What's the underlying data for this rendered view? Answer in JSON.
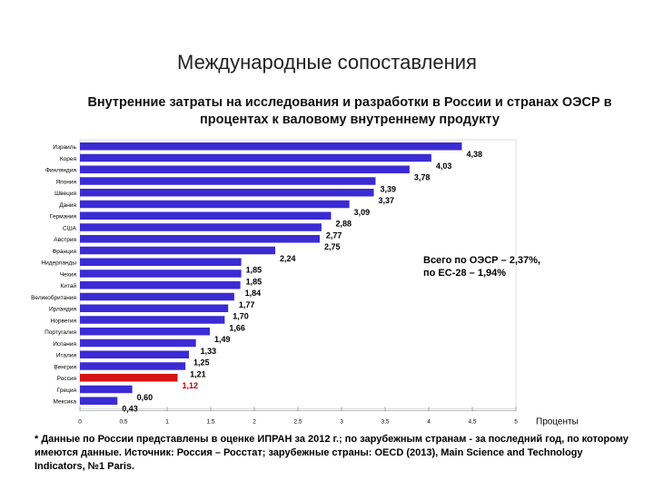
{
  "slide_title": "Международные сопоставления",
  "note_lines": [
    "Всего по ОЭСР – 2,37%,",
    "по ЕС-28 – 1,94%"
  ],
  "footnote": "* Данные по России представлены в оценке ИПРАН за 2012 г.; по зарубежным странам - за последний год, по которому имеются данные. Источник: Россия – Росстат; зарубежные страны: OECD (2013), Main Science and Technology Indicators, №1 Paris.",
  "colors": {
    "bar": "#3a2bd4",
    "highlight": "#d61414",
    "highlight_text": "#c00000"
  },
  "chart_data": {
    "type": "bar",
    "orientation": "horizontal",
    "title": "Внутренние затраты на исследования и разработки в России и странах ОЭСР в процентах к валовому внутреннему продукту",
    "xlabel": "Проценты",
    "xlim": [
      0,
      5
    ],
    "xticks": [
      "0",
      "0,5",
      "1",
      "1,5",
      "2",
      "2,5",
      "3",
      "3,5",
      "4",
      "4,5",
      "5"
    ],
    "highlight_category": "Россия",
    "categories": [
      "Израиль",
      "Корея",
      "Финляндия",
      "Япония",
      "Швеция",
      "Дания",
      "Германия",
      "США",
      "Австрия",
      "Франция",
      "Нидерланды",
      "Чехия",
      "Китай",
      "Великобритания",
      "Ирландия",
      "Норвегия",
      "Португалия",
      "Испания",
      "Италия",
      "Венгрия",
      "Россия",
      "Греция",
      "Мексика"
    ],
    "values": [
      4.38,
      4.03,
      3.78,
      3.39,
      3.37,
      3.09,
      2.88,
      2.77,
      2.75,
      2.24,
      1.85,
      1.85,
      1.84,
      1.77,
      1.7,
      1.66,
      1.49,
      1.33,
      1.25,
      1.21,
      1.12,
      0.6,
      0.43
    ],
    "value_labels": [
      "4,38",
      "4,03",
      "3,78",
      "3,39",
      "3,37",
      "3,09",
      "2,88",
      "2,77",
      "2,75",
      "2,24",
      "1,85",
      "1,85",
      "1,84",
      "1,77",
      "1,70",
      "1,66",
      "1,49",
      "1,33",
      "1,25",
      "1,21",
      "1,12",
      "0,60",
      "0,43"
    ]
  }
}
